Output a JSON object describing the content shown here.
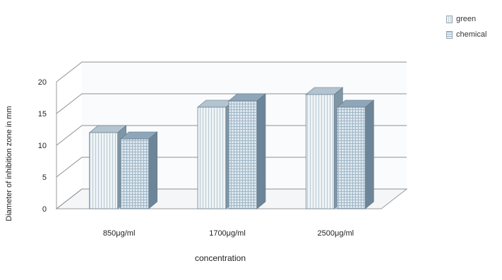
{
  "chart_data": {
    "type": "bar",
    "categories": [
      "850μg/ml",
      "1700μg/ml",
      "2500μg/ml"
    ],
    "series": [
      {
        "name": "green",
        "values": [
          12,
          16,
          18
        ],
        "color": "#e9f0f3"
      },
      {
        "name": "chemical",
        "values": [
          11,
          17,
          16
        ],
        "color": "#c9d8e3"
      }
    ],
    "title": "",
    "xlabel": "concentration",
    "ylabel": "Diameter of inhibition zone in mm",
    "ylim": [
      0,
      20
    ],
    "yticks": [
      "0",
      "5",
      "10",
      "15",
      "20"
    ],
    "grid": true,
    "three_d": true,
    "legend_position": "top-right"
  }
}
